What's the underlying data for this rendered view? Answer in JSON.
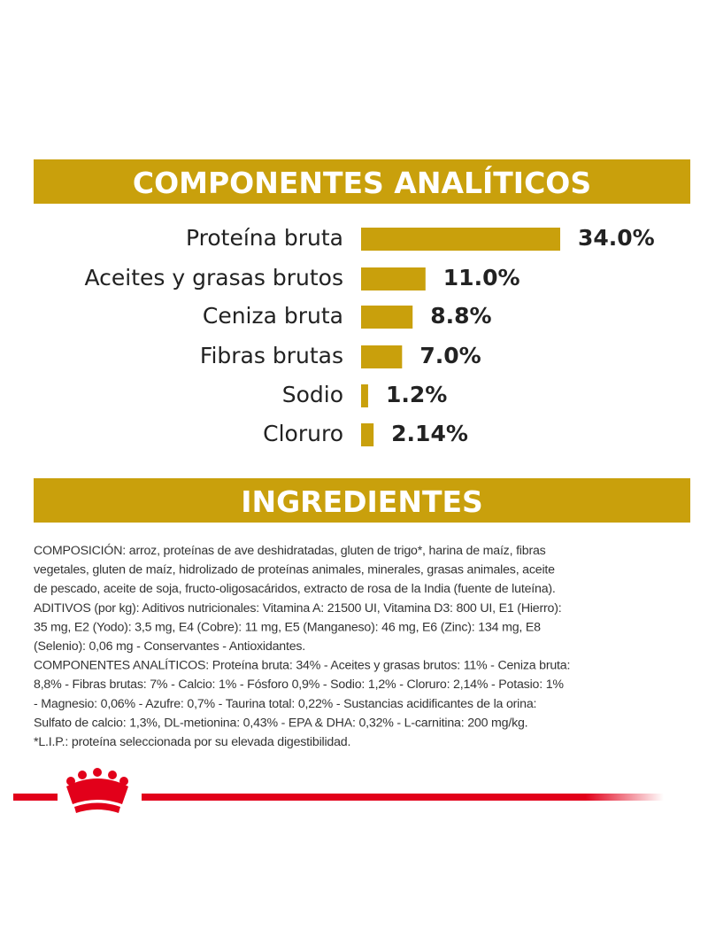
{
  "chart_data": {
    "type": "bar",
    "orientation": "horizontal",
    "title": "COMPONENTES ANALÍTICOS",
    "categories": [
      "Proteína bruta",
      "Aceites y grasas brutos",
      "Ceniza bruta",
      "Fibras brutas",
      "Sodio",
      "Cloruro"
    ],
    "values": [
      34.0,
      11.0,
      8.8,
      7.0,
      1.2,
      2.14
    ],
    "value_labels": [
      "34.0%",
      "11.0%",
      "8.8%",
      "7.0%",
      "1.2%",
      "2.14%"
    ],
    "color": "#c9a00c"
  },
  "ingredients": {
    "title": "INGREDIENTES",
    "lines": [
      "COMPOSICIÓN: arroz, proteínas de ave deshidratadas, gluten de trigo*, harina de maíz, fibras",
      "vegetales, gluten de maíz, hidrolizado de proteínas animales, minerales, grasas animales, aceite",
      "de pescado, aceite de soja, fructo-oligosacáridos, extracto de rosa de la India (fuente de luteína).",
      "ADITIVOS (por kg): Aditivos nutricionales: Vitamina A: 21500 UI, Vitamina D3: 800 UI, E1 (Hierro):",
      "35 mg, E2 (Yodo): 3,5 mg, E4 (Cobre): 11 mg, E5 (Manganeso): 46 mg, E6 (Zinc): 134 mg, E8",
      "(Selenio): 0,06 mg - Conservantes - Antioxidantes.",
      "COMPONENTES ANALÍTICOS: Proteína bruta: 34% - Aceites y grasas brutos: 11% - Ceniza bruta:",
      "8,8% - Fibras brutas: 7% - Calcio: 1% - Fósforo 0,9% - Sodio: 1,2% - Cloruro: 2,14% - Potasio: 1%",
      "- Magnesio: 0,06% - Azufre: 0,7% - Taurina total: 0,22% - Sustancias acidificantes de la orina:",
      "Sulfato de calcio: 1,3%, DL-metionina: 0,43% - EPA & DHA: 0,32% - L-carnitina: 200 mg/kg.",
      "*L.I.P.: proteína seleccionada por su elevada digestibilidad."
    ]
  }
}
